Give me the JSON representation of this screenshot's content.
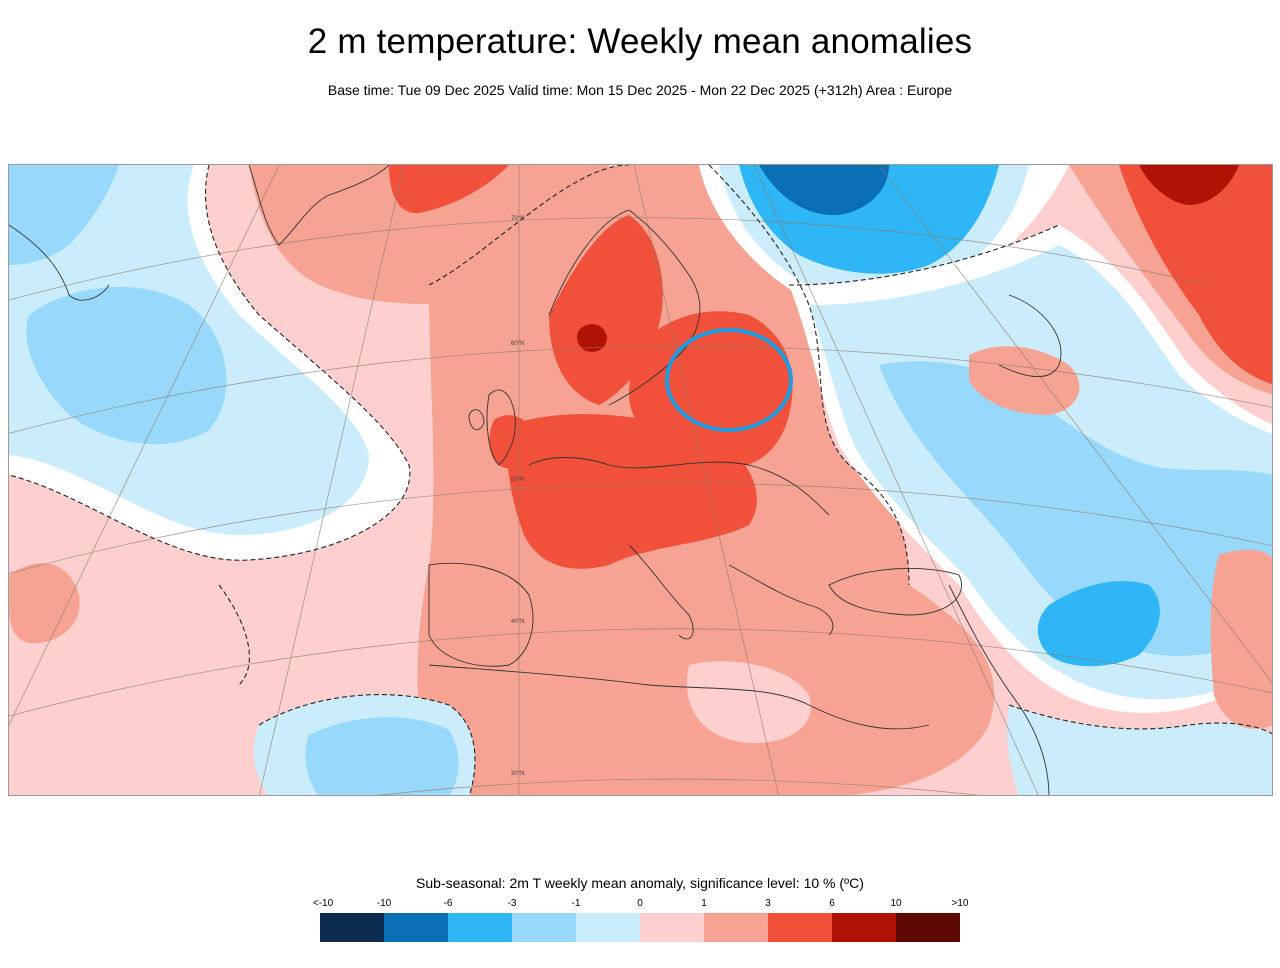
{
  "header": {
    "title": "2 m temperature: Weekly mean anomalies",
    "subtitle": "Base time: Tue 09 Dec 2025 Valid time: Mon 15 Dec 2025 - Mon 22 Dec 2025 (+312h) Area : Europe"
  },
  "map": {
    "area": "Europe",
    "latitude_labels": [
      "70°N",
      "60°N",
      "50°N",
      "40°N",
      "30°N"
    ],
    "annotation": "blue-circle-highlight"
  },
  "legend": {
    "title": "Sub-seasonal: 2m T weekly mean anomaly, significance level: 10 % (ºC)",
    "ticks": [
      "<-10",
      "-10",
      "-6",
      "-3",
      "-1",
      "0",
      "1",
      "3",
      "6",
      "10",
      ">10"
    ],
    "colors": [
      "#0b2c4f",
      "#0a6fb4",
      "#2eb6f6",
      "#98d9fb",
      "#caecfb",
      "#fdd0cf",
      "#f7a393",
      "#f1503a",
      "#b11206",
      "#5e0904"
    ]
  }
}
